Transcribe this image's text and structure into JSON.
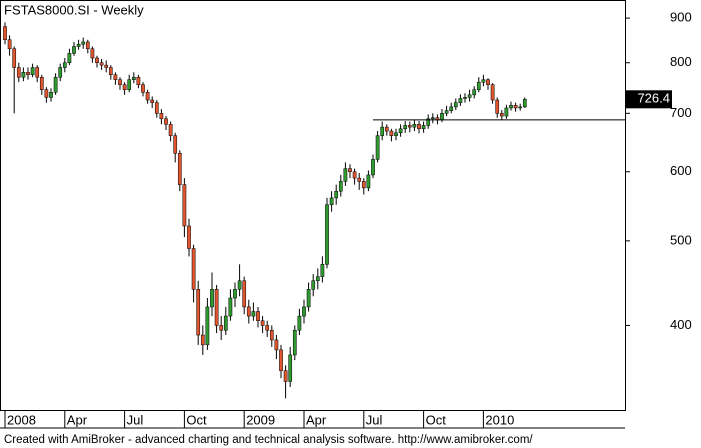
{
  "chart_data": {
    "type": "candlestick",
    "title": "FSTAS8000.SI - Weekly",
    "footer": "Created with AmiBroker - advanced charting and technical analysis software. http://www.amibroker.com/",
    "categories": [
      "2008",
      null,
      null,
      null,
      null,
      null,
      null,
      null,
      null,
      null,
      null,
      null,
      null,
      "Apr",
      null,
      null,
      null,
      null,
      null,
      null,
      null,
      null,
      null,
      null,
      null,
      null,
      "Jul",
      null,
      null,
      null,
      null,
      null,
      null,
      null,
      null,
      null,
      null,
      null,
      null,
      "Oct",
      null,
      null,
      null,
      null,
      null,
      null,
      null,
      null,
      null,
      null,
      null,
      null,
      "2009",
      null,
      null,
      null,
      null,
      null,
      null,
      null,
      null,
      null,
      null,
      null,
      null,
      "Apr",
      null,
      null,
      null,
      null,
      null,
      null,
      null,
      null,
      null,
      null,
      null,
      null,
      "Jul",
      null,
      null,
      null,
      null,
      null,
      null,
      null,
      null,
      null,
      null,
      null,
      null,
      "Oct",
      null,
      null,
      null,
      null,
      null,
      null,
      null,
      null,
      null,
      null,
      null,
      null,
      "2010",
      null,
      null,
      null,
      null,
      null,
      null,
      null,
      null,
      null
    ],
    "open": [
      880,
      850,
      830,
      790,
      770,
      780,
      775,
      790,
      770,
      745,
      730,
      740,
      770,
      790,
      800,
      820,
      835,
      840,
      845,
      830,
      810,
      800,
      795,
      790,
      775,
      765,
      755,
      745,
      765,
      770,
      755,
      740,
      725,
      720,
      700,
      690,
      680,
      660,
      630,
      580,
      520,
      490,
      440,
      390,
      380,
      420,
      440,
      400,
      395,
      410,
      430,
      440,
      450,
      420,
      410,
      415,
      405,
      400,
      395,
      385,
      375,
      355,
      345,
      370,
      395,
      410,
      420,
      440,
      450,
      455,
      470,
      550,
      560,
      570,
      585,
      605,
      600,
      590,
      585,
      575,
      595,
      620,
      660,
      675,
      668,
      660,
      665,
      672,
      678,
      675,
      680,
      672,
      678,
      690,
      692,
      688,
      700,
      705,
      712,
      720,
      728,
      730,
      735,
      745,
      760,
      765,
      755,
      725,
      700,
      695,
      710,
      715,
      710,
      712
    ],
    "high": [
      890,
      860,
      835,
      800,
      790,
      790,
      798,
      795,
      775,
      750,
      748,
      778,
      798,
      810,
      830,
      845,
      850,
      855,
      850,
      835,
      815,
      808,
      805,
      795,
      780,
      770,
      760,
      775,
      780,
      775,
      760,
      745,
      732,
      725,
      708,
      695,
      685,
      665,
      635,
      590,
      530,
      495,
      450,
      400,
      430,
      460,
      445,
      410,
      420,
      440,
      448,
      470,
      455,
      428,
      425,
      420,
      410,
      405,
      400,
      390,
      380,
      360,
      378,
      400,
      418,
      428,
      448,
      458,
      465,
      480,
      560,
      570,
      580,
      595,
      615,
      612,
      605,
      598,
      590,
      602,
      628,
      668,
      685,
      680,
      672,
      672,
      680,
      686,
      685,
      688,
      686,
      685,
      698,
      700,
      698,
      708,
      714,
      720,
      728,
      736,
      738,
      745,
      752,
      770,
      775,
      768,
      758,
      730,
      706,
      716,
      722,
      720,
      718,
      730
    ],
    "low": [
      840,
      815,
      700,
      760,
      762,
      765,
      770,
      760,
      735,
      720,
      722,
      735,
      762,
      780,
      795,
      815,
      828,
      830,
      820,
      800,
      790,
      785,
      780,
      765,
      755,
      745,
      735,
      740,
      758,
      748,
      732,
      718,
      710,
      692,
      680,
      670,
      650,
      615,
      570,
      505,
      480,
      425,
      380,
      370,
      375,
      410,
      392,
      385,
      390,
      405,
      420,
      432,
      412,
      402,
      405,
      398,
      392,
      388,
      378,
      366,
      348,
      330,
      340,
      365,
      390,
      402,
      415,
      432,
      440,
      448,
      465,
      540,
      550,
      562,
      578,
      590,
      580,
      572,
      565,
      570,
      590,
      615,
      652,
      660,
      650,
      652,
      658,
      665,
      666,
      668,
      664,
      665,
      672,
      682,
      680,
      684,
      695,
      700,
      706,
      714,
      720,
      722,
      728,
      740,
      752,
      745,
      718,
      692,
      688,
      690,
      705,
      703,
      705,
      710
    ],
    "close": [
      850,
      830,
      790,
      770,
      780,
      775,
      790,
      770,
      745,
      730,
      740,
      770,
      790,
      800,
      820,
      835,
      840,
      845,
      830,
      810,
      800,
      795,
      790,
      775,
      765,
      755,
      745,
      765,
      770,
      755,
      740,
      725,
      720,
      700,
      690,
      680,
      660,
      630,
      580,
      520,
      490,
      440,
      390,
      380,
      420,
      440,
      400,
      395,
      410,
      430,
      440,
      450,
      420,
      410,
      415,
      405,
      400,
      395,
      385,
      375,
      355,
      345,
      370,
      395,
      410,
      420,
      440,
      450,
      455,
      470,
      550,
      560,
      570,
      585,
      605,
      600,
      590,
      585,
      575,
      595,
      620,
      660,
      675,
      668,
      660,
      665,
      672,
      678,
      675,
      680,
      672,
      678,
      690,
      692,
      688,
      700,
      705,
      712,
      720,
      728,
      730,
      735,
      745,
      760,
      765,
      755,
      725,
      700,
      695,
      710,
      715,
      710,
      712,
      726.4
    ],
    "up_color": "#2f9a2f",
    "down_color": "#e0542e",
    "wick_color": "#000000",
    "log_scale": true,
    "ylim": [
      320,
      944
    ],
    "yticks": [
      400,
      500,
      600,
      700,
      800,
      900
    ],
    "level_line": {
      "value": 688,
      "start": 80
    }
  }
}
